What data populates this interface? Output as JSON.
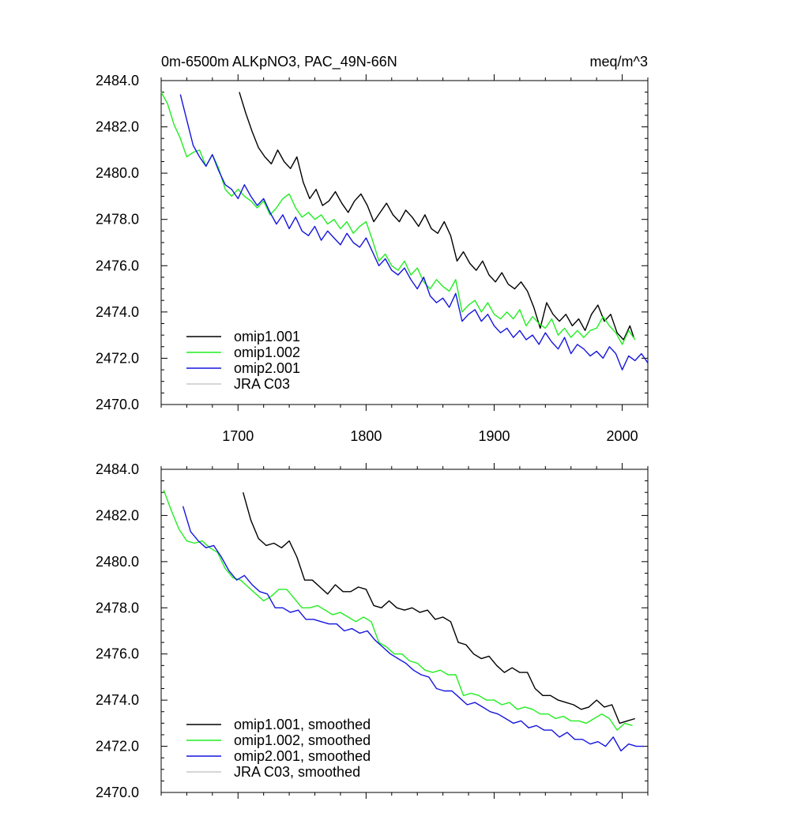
{
  "header": {
    "title": "0m-6500m ALKpNO3, PAC_49N-66N",
    "units": "meq/m^3"
  },
  "chart_data": [
    {
      "type": "line",
      "xlim": [
        1640,
        2020
      ],
      "ylim": [
        2470,
        2484
      ],
      "x_ticks": [
        1700,
        1800,
        1900,
        2000
      ],
      "x_tick_labels": [
        "1700",
        "1800",
        "1900",
        "2000"
      ],
      "y_ticks": [
        2470,
        2472,
        2474,
        2476,
        2478,
        2480,
        2482,
        2484
      ],
      "y_tick_labels": [
        "2470.0",
        "2472.0",
        "2474.0",
        "2476.0",
        "2478.0",
        "2480.0",
        "2482.0",
        "2484.0"
      ],
      "grid": false,
      "legend_position": "bottom-left",
      "series": [
        {
          "name": "omip1.001",
          "color": "#000000",
          "x": [
            1701,
            1706,
            1711,
            1716,
            1721,
            1726,
            1731,
            1736,
            1741,
            1746,
            1751,
            1756,
            1761,
            1766,
            1771,
            1776,
            1781,
            1786,
            1791,
            1796,
            1801,
            1806,
            1811,
            1816,
            1821,
            1826,
            1831,
            1836,
            1841,
            1846,
            1851,
            1856,
            1861,
            1866,
            1871,
            1876,
            1881,
            1886,
            1891,
            1896,
            1901,
            1906,
            1911,
            1916,
            1921,
            1926,
            1931,
            1936,
            1941,
            1946,
            1951,
            1956,
            1961,
            1966,
            1971,
            1976,
            1981,
            1986,
            1991,
            1996,
            2001,
            2006,
            2009
          ],
          "y": [
            2483.5,
            2482.6,
            2481.8,
            2481.1,
            2480.7,
            2480.4,
            2481.0,
            2480.5,
            2480.2,
            2480.7,
            2479.6,
            2478.9,
            2479.3,
            2478.6,
            2478.8,
            2479.2,
            2478.7,
            2478.3,
            2478.8,
            2479.1,
            2478.6,
            2477.9,
            2478.3,
            2478.7,
            2478.2,
            2477.9,
            2478.4,
            2478.1,
            2477.7,
            2478.2,
            2477.6,
            2477.4,
            2477.9,
            2477.3,
            2476.2,
            2476.6,
            2476.1,
            2475.8,
            2476.2,
            2475.6,
            2475.3,
            2475.7,
            2475.2,
            2475.0,
            2475.3,
            2474.9,
            2474.2,
            2473.3,
            2474.4,
            2473.9,
            2473.6,
            2473.9,
            2473.4,
            2473.7,
            2473.2,
            2473.9,
            2474.3,
            2473.6,
            2473.9,
            2473.1,
            2472.8,
            2473.4,
            2472.9
          ]
        },
        {
          "name": "omip1.002",
          "color": "#22ee22",
          "x": [
            1640,
            1645,
            1650,
            1655,
            1660,
            1665,
            1670,
            1675,
            1680,
            1685,
            1690,
            1695,
            1700,
            1705,
            1710,
            1715,
            1720,
            1725,
            1730,
            1735,
            1740,
            1745,
            1750,
            1755,
            1760,
            1765,
            1770,
            1775,
            1780,
            1785,
            1790,
            1795,
            1800,
            1805,
            1810,
            1815,
            1820,
            1825,
            1830,
            1835,
            1840,
            1845,
            1850,
            1855,
            1860,
            1865,
            1870,
            1875,
            1880,
            1885,
            1890,
            1895,
            1900,
            1905,
            1910,
            1915,
            1920,
            1925,
            1930,
            1935,
            1940,
            1945,
            1950,
            1955,
            1960,
            1965,
            1970,
            1975,
            1980,
            1985,
            1990,
            1995,
            2000,
            2005,
            2010
          ],
          "y": [
            2483.5,
            2483.0,
            2482.1,
            2481.5,
            2480.7,
            2480.9,
            2481.0,
            2480.3,
            2480.8,
            2480.2,
            2479.3,
            2479.0,
            2479.3,
            2479.0,
            2478.8,
            2478.5,
            2478.8,
            2478.2,
            2478.5,
            2478.9,
            2479.1,
            2478.5,
            2478.1,
            2478.3,
            2478.0,
            2478.2,
            2477.8,
            2478.0,
            2477.6,
            2477.9,
            2477.4,
            2477.7,
            2477.9,
            2477.1,
            2476.2,
            2476.5,
            2476.0,
            2475.8,
            2476.2,
            2475.6,
            2475.9,
            2475.3,
            2475.0,
            2475.4,
            2475.1,
            2474.9,
            2475.4,
            2474.0,
            2474.3,
            2474.5,
            2474.0,
            2474.4,
            2473.9,
            2473.7,
            2474.0,
            2473.7,
            2474.1,
            2473.4,
            2473.8,
            2473.5,
            2473.3,
            2473.7,
            2473.0,
            2473.3,
            2472.9,
            2473.2,
            2472.9,
            2473.2,
            2473.3,
            2473.8,
            2473.4,
            2473.1,
            2472.6,
            2473.2,
            2472.8
          ]
        },
        {
          "name": "omip2.001",
          "color": "#1515dd",
          "x": [
            1655,
            1660,
            1665,
            1670,
            1675,
            1680,
            1685,
            1690,
            1695,
            1700,
            1705,
            1710,
            1715,
            1720,
            1725,
            1730,
            1735,
            1740,
            1745,
            1750,
            1755,
            1760,
            1765,
            1770,
            1775,
            1780,
            1785,
            1790,
            1795,
            1800,
            1805,
            1810,
            1815,
            1820,
            1825,
            1830,
            1835,
            1840,
            1845,
            1850,
            1855,
            1860,
            1865,
            1870,
            1875,
            1880,
            1885,
            1890,
            1895,
            1900,
            1905,
            1910,
            1915,
            1920,
            1925,
            1930,
            1935,
            1940,
            1945,
            1950,
            1955,
            1960,
            1965,
            1970,
            1975,
            1980,
            1985,
            1990,
            1995,
            2000,
            2005,
            2010,
            2015,
            2020
          ],
          "y": [
            2483.4,
            2482.3,
            2481.2,
            2480.7,
            2480.3,
            2480.8,
            2480.1,
            2479.5,
            2479.3,
            2478.9,
            2479.5,
            2479.0,
            2478.6,
            2478.9,
            2478.3,
            2477.8,
            2478.2,
            2477.6,
            2478.1,
            2477.5,
            2477.3,
            2477.7,
            2477.1,
            2477.5,
            2477.2,
            2476.9,
            2477.4,
            2477.0,
            2476.8,
            2477.2,
            2476.6,
            2476.0,
            2476.3,
            2475.8,
            2475.6,
            2475.9,
            2475.4,
            2475.0,
            2475.5,
            2474.7,
            2474.4,
            2474.6,
            2474.2,
            2474.8,
            2473.6,
            2473.9,
            2474.1,
            2473.6,
            2473.9,
            2473.4,
            2473.1,
            2473.3,
            2472.9,
            2473.2,
            2472.8,
            2473.0,
            2472.6,
            2473.1,
            2472.7,
            2472.4,
            2472.9,
            2472.2,
            2472.6,
            2472.4,
            2472.1,
            2472.3,
            2472.0,
            2472.5,
            2472.2,
            2471.5,
            2472.1,
            2471.9,
            2472.2,
            2471.8
          ]
        },
        {
          "name": "JRA C03",
          "color": "#c8c8c8",
          "x": [],
          "y": []
        }
      ]
    },
    {
      "type": "line",
      "xlim": [
        1640,
        2020
      ],
      "ylim": [
        2470,
        2484
      ],
      "x_ticks": [
        1700,
        1800,
        1900,
        2000
      ],
      "x_tick_labels": [],
      "y_ticks": [
        2470,
        2472,
        2474,
        2476,
        2478,
        2480,
        2482,
        2484
      ],
      "y_tick_labels": [
        "2470.0",
        "2472.0",
        "2474.0",
        "2476.0",
        "2478.0",
        "2480.0",
        "2482.0",
        "2484.0"
      ],
      "grid": false,
      "legend_position": "bottom-left",
      "series": [
        {
          "name": "omip1.001, smoothed",
          "color": "#000000",
          "x": [
            1704,
            1710,
            1716,
            1722,
            1728,
            1734,
            1740,
            1746,
            1752,
            1758,
            1764,
            1770,
            1776,
            1782,
            1788,
            1794,
            1800,
            1806,
            1812,
            1818,
            1824,
            1830,
            1836,
            1842,
            1848,
            1854,
            1860,
            1866,
            1872,
            1878,
            1884,
            1890,
            1896,
            1902,
            1908,
            1914,
            1920,
            1926,
            1932,
            1938,
            1944,
            1950,
            1956,
            1962,
            1968,
            1974,
            1980,
            1986,
            1992,
            1998,
            2004,
            2010
          ],
          "y": [
            2483.0,
            2481.8,
            2481.0,
            2480.7,
            2480.8,
            2480.6,
            2480.9,
            2480.2,
            2479.2,
            2479.2,
            2478.9,
            2478.6,
            2479.0,
            2478.7,
            2478.7,
            2478.9,
            2478.8,
            2478.1,
            2478.0,
            2478.3,
            2478.0,
            2477.9,
            2478.0,
            2477.8,
            2477.9,
            2477.5,
            2477.6,
            2477.4,
            2476.5,
            2476.4,
            2476.0,
            2475.8,
            2475.9,
            2475.5,
            2475.2,
            2475.4,
            2475.2,
            2475.2,
            2474.5,
            2474.2,
            2474.2,
            2474.0,
            2473.9,
            2473.8,
            2473.6,
            2473.7,
            2474.0,
            2473.7,
            2473.8,
            2473.0,
            2473.1,
            2473.2
          ]
        },
        {
          "name": "omip1.002, smoothed",
          "color": "#22ee22",
          "x": [
            1642,
            1648,
            1654,
            1660,
            1666,
            1672,
            1678,
            1684,
            1690,
            1696,
            1702,
            1708,
            1714,
            1720,
            1726,
            1732,
            1738,
            1744,
            1750,
            1756,
            1762,
            1768,
            1774,
            1780,
            1786,
            1792,
            1798,
            1804,
            1810,
            1816,
            1822,
            1828,
            1834,
            1840,
            1846,
            1852,
            1858,
            1864,
            1870,
            1876,
            1882,
            1888,
            1894,
            1900,
            1906,
            1912,
            1918,
            1924,
            1930,
            1936,
            1942,
            1948,
            1954,
            1960,
            1966,
            1972,
            1978,
            1984,
            1990,
            1996,
            2002,
            2008
          ],
          "y": [
            2483.1,
            2482.2,
            2481.4,
            2480.9,
            2480.8,
            2480.9,
            2480.6,
            2480.4,
            2479.7,
            2479.3,
            2479.2,
            2478.9,
            2478.6,
            2478.3,
            2478.5,
            2478.8,
            2478.8,
            2478.4,
            2478.0,
            2478.0,
            2478.1,
            2477.9,
            2477.7,
            2477.8,
            2477.6,
            2477.4,
            2477.6,
            2477.4,
            2476.5,
            2476.3,
            2476.0,
            2476.0,
            2475.7,
            2475.6,
            2475.3,
            2475.2,
            2475.3,
            2475.1,
            2475.1,
            2474.2,
            2474.3,
            2474.2,
            2474.0,
            2474.0,
            2473.8,
            2473.9,
            2473.6,
            2473.7,
            2473.6,
            2473.4,
            2473.4,
            2473.2,
            2473.3,
            2473.1,
            2473.1,
            2473.0,
            2473.2,
            2473.4,
            2473.2,
            2472.7,
            2473.0,
            2472.9
          ]
        },
        {
          "name": "omip2.001, smoothed",
          "color": "#1515dd",
          "x": [
            1657,
            1663,
            1669,
            1675,
            1681,
            1687,
            1693,
            1699,
            1705,
            1711,
            1717,
            1723,
            1729,
            1735,
            1741,
            1747,
            1753,
            1759,
            1765,
            1771,
            1777,
            1783,
            1789,
            1795,
            1801,
            1807,
            1813,
            1819,
            1825,
            1831,
            1837,
            1843,
            1849,
            1855,
            1861,
            1867,
            1873,
            1879,
            1885,
            1891,
            1897,
            1903,
            1909,
            1915,
            1921,
            1927,
            1933,
            1939,
            1945,
            1951,
            1957,
            1963,
            1969,
            1975,
            1981,
            1987,
            1993,
            1999,
            2005,
            2011,
            2017
          ],
          "y": [
            2482.4,
            2481.3,
            2480.9,
            2480.6,
            2480.7,
            2480.2,
            2479.6,
            2479.2,
            2479.4,
            2479.0,
            2478.7,
            2478.6,
            2478.0,
            2478.0,
            2477.8,
            2477.9,
            2477.5,
            2477.5,
            2477.4,
            2477.3,
            2477.3,
            2477.0,
            2477.1,
            2476.9,
            2477.0,
            2476.6,
            2476.3,
            2476.0,
            2475.8,
            2475.6,
            2475.3,
            2475.1,
            2475.0,
            2474.5,
            2474.4,
            2474.4,
            2474.1,
            2473.8,
            2473.9,
            2473.7,
            2473.5,
            2473.4,
            2473.2,
            2473.0,
            2473.1,
            2472.8,
            2472.9,
            2472.7,
            2472.7,
            2472.4,
            2472.6,
            2472.3,
            2472.3,
            2472.1,
            2472.2,
            2472.0,
            2472.4,
            2471.8,
            2472.1,
            2472.0,
            2472.0
          ]
        },
        {
          "name": "JRA C03, smoothed",
          "color": "#c8c8c8",
          "x": [],
          "y": []
        }
      ]
    }
  ]
}
